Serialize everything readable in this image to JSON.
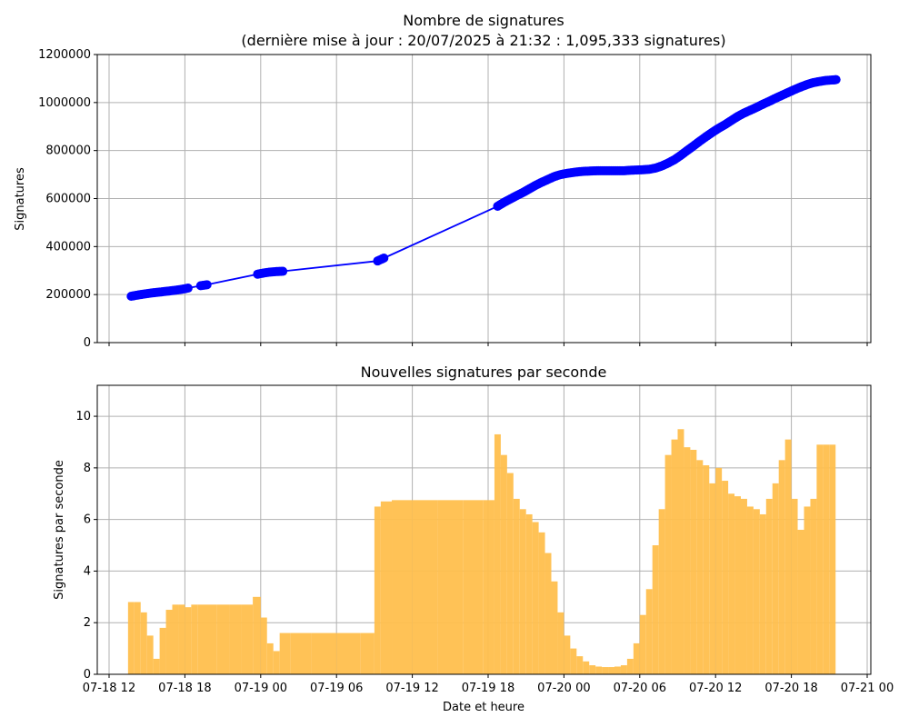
{
  "chart_data": [
    {
      "type": "line",
      "title": "Nombre de signatures",
      "subtitle": "(dernière mise à jour : 20/07/2025 à 21:32 : 1,095,333 signatures)",
      "xlabel": "",
      "ylabel": "Signatures",
      "ylim": [
        0,
        1200000
      ],
      "yticks": [
        0,
        200000,
        400000,
        600000,
        800000,
        1000000,
        1200000
      ],
      "ytick_labels": [
        "0",
        "200000",
        "400000",
        "600000",
        "800000",
        "1000000",
        "1200000"
      ],
      "grid": true,
      "color": "#0000ff",
      "marker": "circle",
      "series": [
        {
          "x": [
            "2025-07-18 13:45",
            "2025-07-18 14:15",
            "2025-07-18 14:45",
            "2025-07-18 15:15",
            "2025-07-18 15:45",
            "2025-07-18 16:15",
            "2025-07-18 16:45",
            "2025-07-18 17:15",
            "2025-07-18 17:45",
            "2025-07-18 18:15",
            "2025-07-18 19:15",
            "2025-07-18 19:45",
            "2025-07-18 23:45",
            "2025-07-19 00:15",
            "2025-07-19 00:45",
            "2025-07-19 01:15",
            "2025-07-19 01:45",
            "2025-07-19 09:15",
            "2025-07-19 09:45",
            "2025-07-19 18:45",
            "2025-07-19 19:15",
            "2025-07-19 19:45",
            "2025-07-19 20:15",
            "2025-07-19 20:45",
            "2025-07-19 21:15",
            "2025-07-19 21:45",
            "2025-07-19 22:15",
            "2025-07-19 22:45",
            "2025-07-19 23:15",
            "2025-07-19 23:45",
            "2025-07-20 00:15",
            "2025-07-20 00:45",
            "2025-07-20 01:15",
            "2025-07-20 01:45",
            "2025-07-20 02:15",
            "2025-07-20 02:45",
            "2025-07-20 03:15",
            "2025-07-20 03:45",
            "2025-07-20 04:15",
            "2025-07-20 04:45",
            "2025-07-20 05:15",
            "2025-07-20 05:45",
            "2025-07-20 06:15",
            "2025-07-20 06:45",
            "2025-07-20 07:15",
            "2025-07-20 07:45",
            "2025-07-20 08:15",
            "2025-07-20 08:45",
            "2025-07-20 09:15",
            "2025-07-20 09:45",
            "2025-07-20 10:15",
            "2025-07-20 10:45",
            "2025-07-20 11:15",
            "2025-07-20 11:45",
            "2025-07-20 12:15",
            "2025-07-20 12:45",
            "2025-07-20 13:15",
            "2025-07-20 13:45",
            "2025-07-20 14:15",
            "2025-07-20 14:45",
            "2025-07-20 15:15",
            "2025-07-20 15:45",
            "2025-07-20 16:15",
            "2025-07-20 16:45",
            "2025-07-20 17:15",
            "2025-07-20 17:45",
            "2025-07-20 18:15",
            "2025-07-20 18:45",
            "2025-07-20 19:15",
            "2025-07-20 19:45",
            "2025-07-20 20:15",
            "2025-07-20 20:45",
            "2025-07-20 21:15",
            "2025-07-20 21:32"
          ],
          "values": [
            193000,
            198000,
            202000,
            206000,
            209000,
            212000,
            215000,
            218000,
            222000,
            227000,
            237000,
            241000,
            285000,
            290000,
            294000,
            296000,
            297000,
            340000,
            352000,
            568000,
            584000,
            598000,
            612000,
            625000,
            640000,
            655000,
            668000,
            680000,
            692000,
            700000,
            705000,
            709000,
            712000,
            714000,
            715000,
            716000,
            716000,
            716000,
            716000,
            716000,
            718000,
            719000,
            720000,
            722000,
            727000,
            736000,
            748000,
            762000,
            780000,
            800000,
            819000,
            839000,
            858000,
            876000,
            893000,
            908000,
            925000,
            942000,
            956000,
            968000,
            980000,
            993000,
            1005000,
            1018000,
            1030000,
            1042000,
            1054000,
            1065000,
            1075000,
            1083000,
            1088000,
            1092000,
            1094000,
            1095333
          ]
        }
      ]
    },
    {
      "type": "bar",
      "title": "Nouvelles signatures par seconde",
      "xlabel": "Date et heure",
      "ylabel": "Signatures par seconde",
      "ylim": [
        0,
        11.2
      ],
      "yticks": [
        0,
        2,
        4,
        6,
        8,
        10
      ],
      "ytick_labels": [
        "0",
        "2",
        "4",
        "6",
        "8",
        "10"
      ],
      "xticks": [
        "2025-07-18 12:00",
        "2025-07-18 18:00",
        "2025-07-19 00:00",
        "2025-07-19 06:00",
        "2025-07-19 12:00",
        "2025-07-19 18:00",
        "2025-07-20 00:00",
        "2025-07-20 06:00",
        "2025-07-20 12:00",
        "2025-07-20 18:00",
        "2025-07-21 00:00"
      ],
      "xtick_labels": [
        "07-18 12",
        "07-18 18",
        "07-19 00",
        "07-19 06",
        "07-19 12",
        "07-19 18",
        "07-20 00",
        "07-20 06",
        "07-20 12",
        "07-20 18",
        "07-21 00"
      ],
      "grid": true,
      "color": "#ffbf4d",
      "series": [
        {
          "x": [
            "2025-07-18 13:45",
            "2025-07-18 14:15",
            "2025-07-18 14:45",
            "2025-07-18 15:15",
            "2025-07-18 15:45",
            "2025-07-18 16:15",
            "2025-07-18 16:45",
            "2025-07-18 17:15",
            "2025-07-18 17:45",
            "2025-07-18 18:15",
            "2025-07-18 18:45",
            "2025-07-18 19:15",
            "2025-07-18 20:00",
            "2025-07-18 21:00",
            "2025-07-18 22:00",
            "2025-07-18 23:00",
            "2025-07-18 23:45",
            "2025-07-19 00:15",
            "2025-07-19 00:45",
            "2025-07-19 01:15",
            "2025-07-19 01:45",
            "2025-07-19 03:00",
            "2025-07-19 05:00",
            "2025-07-19 07:00",
            "2025-07-19 08:45",
            "2025-07-19 09:15",
            "2025-07-19 09:45",
            "2025-07-19 11:00",
            "2025-07-19 13:00",
            "2025-07-19 15:00",
            "2025-07-19 17:00",
            "2025-07-19 18:15",
            "2025-07-19 18:45",
            "2025-07-19 19:15",
            "2025-07-19 19:45",
            "2025-07-19 20:15",
            "2025-07-19 20:45",
            "2025-07-19 21:15",
            "2025-07-19 21:45",
            "2025-07-19 22:15",
            "2025-07-19 22:45",
            "2025-07-19 23:15",
            "2025-07-19 23:45",
            "2025-07-20 00:15",
            "2025-07-20 00:45",
            "2025-07-20 01:15",
            "2025-07-20 01:45",
            "2025-07-20 02:15",
            "2025-07-20 02:45",
            "2025-07-20 03:15",
            "2025-07-20 03:45",
            "2025-07-20 04:15",
            "2025-07-20 04:45",
            "2025-07-20 05:15",
            "2025-07-20 05:45",
            "2025-07-20 06:15",
            "2025-07-20 06:45",
            "2025-07-20 07:15",
            "2025-07-20 07:45",
            "2025-07-20 08:15",
            "2025-07-20 08:45",
            "2025-07-20 09:15",
            "2025-07-20 09:45",
            "2025-07-20 10:15",
            "2025-07-20 10:45",
            "2025-07-20 11:15",
            "2025-07-20 11:45",
            "2025-07-20 12:15",
            "2025-07-20 12:45",
            "2025-07-20 13:15",
            "2025-07-20 13:45",
            "2025-07-20 14:15",
            "2025-07-20 14:45",
            "2025-07-20 15:15",
            "2025-07-20 15:45",
            "2025-07-20 16:15",
            "2025-07-20 16:45",
            "2025-07-20 17:15",
            "2025-07-20 17:45",
            "2025-07-20 18:15",
            "2025-07-20 18:45",
            "2025-07-20 19:15",
            "2025-07-20 19:45",
            "2025-07-20 20:15",
            "2025-07-20 20:45",
            "2025-07-20 21:15"
          ],
          "values": [
            2.8,
            2.8,
            2.4,
            1.5,
            0.6,
            1.8,
            2.5,
            2.7,
            2.7,
            2.6,
            2.7,
            2.7,
            2.7,
            2.7,
            2.7,
            2.7,
            3.0,
            2.2,
            1.2,
            0.9,
            1.6,
            1.6,
            1.6,
            1.6,
            1.6,
            6.5,
            6.7,
            6.75,
            6.75,
            6.75,
            6.75,
            6.75,
            9.3,
            8.5,
            7.8,
            6.8,
            6.4,
            6.2,
            5.9,
            5.5,
            4.7,
            3.6,
            2.4,
            1.5,
            1.0,
            0.7,
            0.5,
            0.35,
            0.3,
            0.28,
            0.28,
            0.3,
            0.35,
            0.6,
            1.2,
            2.3,
            3.3,
            5.0,
            6.4,
            8.5,
            9.1,
            9.5,
            8.8,
            8.7,
            8.3,
            8.1,
            7.4,
            8.0,
            7.5,
            7.0,
            6.9,
            6.8,
            6.5,
            6.4,
            6.2,
            6.8,
            7.4,
            8.3,
            9.1,
            6.8,
            5.6,
            6.5,
            6.8,
            8.9,
            8.9,
            8.9
          ]
        }
      ]
    }
  ]
}
